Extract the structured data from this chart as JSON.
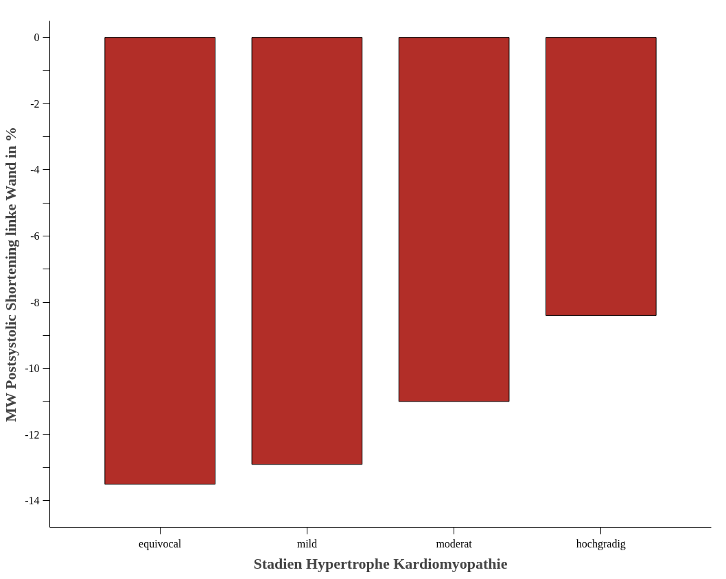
{
  "chart_data": {
    "type": "bar",
    "xlabel": "Stadien Hypertrophe Kardiomyopathie",
    "ylabel": "MW Postsystolic Shortening linke Wand in %",
    "categories": [
      "equivocal",
      "mild",
      "moderat",
      "hochgradig"
    ],
    "values": [
      -13.5,
      -12.9,
      -11.0,
      -8.4
    ],
    "color": "#b22e28",
    "ylim": [
      -14.8,
      0.5
    ],
    "yticks": [
      0,
      {
        "value": -1,
        "label": null
      },
      -2,
      {
        "value": -3,
        "label": null
      },
      -4,
      {
        "value": -5,
        "label": null
      },
      -6,
      {
        "value": -7,
        "label": null
      },
      -8,
      {
        "value": -9,
        "label": null
      },
      -10,
      {
        "value": -11,
        "label": null
      },
      -12,
      {
        "value": -13,
        "label": null
      },
      -14
    ],
    "grid": false
  }
}
